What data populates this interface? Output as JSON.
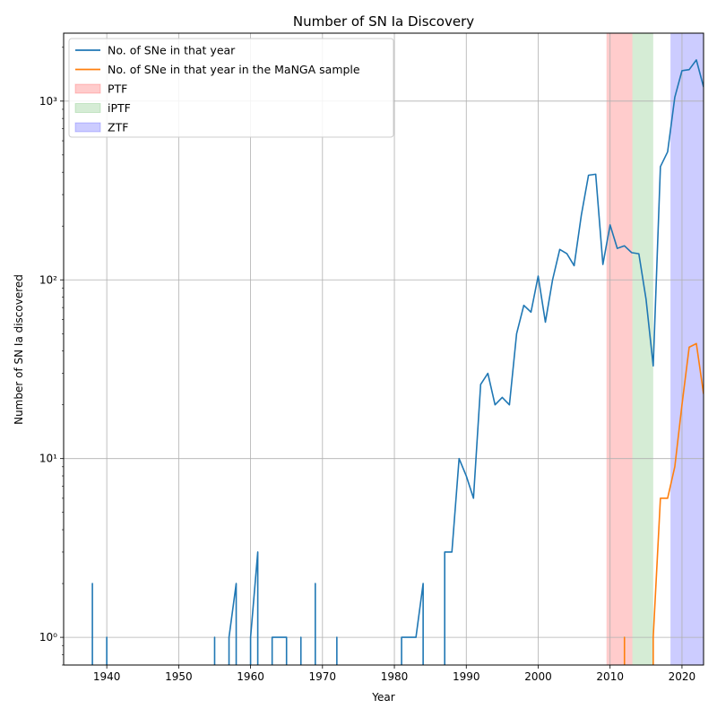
{
  "chart_data": {
    "type": "line",
    "title": "Number of SN Ia Discovery",
    "xlabel": "Year",
    "ylabel": "Number of SN Ia discovered",
    "xlim": [
      1934,
      2023
    ],
    "ylim": [
      0.7,
      2400
    ],
    "yscale": "log",
    "grid": true,
    "legend_position": "top-left",
    "x_ticks": [
      1940,
      1950,
      1960,
      1970,
      1980,
      1990,
      2000,
      2010,
      2020
    ],
    "y_ticks": [
      1,
      10,
      100,
      1000
    ],
    "y_tick_labels": [
      "10⁰",
      "10¹",
      "10²",
      "10³"
    ],
    "series": [
      {
        "name": "No. of SNe in that year",
        "color": "#1f77b4",
        "segments": [
          [
            [
              1938,
              0.5
            ],
            [
              1938,
              2
            ],
            [
              1938,
              0.5
            ]
          ],
          [
            [
              1940,
              0.5
            ],
            [
              1940,
              1
            ],
            [
              1940,
              0.5
            ]
          ],
          [
            [
              1955,
              0.5
            ],
            [
              1955,
              1
            ],
            [
              1955,
              0.5
            ]
          ],
          [
            [
              1957,
              0.5
            ],
            [
              1957,
              1
            ],
            [
              1958,
              2
            ],
            [
              1958,
              0.5
            ]
          ],
          [
            [
              1960,
              0.5
            ],
            [
              1960,
              1
            ],
            [
              1961,
              3
            ],
            [
              1961,
              0.5
            ]
          ],
          [
            [
              1963,
              0.5
            ],
            [
              1963,
              1
            ],
            [
              1964,
              1
            ],
            [
              1965,
              1
            ],
            [
              1965,
              0.5
            ]
          ],
          [
            [
              1967,
              0.5
            ],
            [
              1967,
              1
            ],
            [
              1967,
              0.5
            ]
          ],
          [
            [
              1969,
              0.5
            ],
            [
              1969,
              2
            ],
            [
              1969,
              0.5
            ]
          ],
          [
            [
              1972,
              0.5
            ],
            [
              1972,
              1
            ],
            [
              1972,
              0.5
            ]
          ],
          [
            [
              1981,
              0.5
            ],
            [
              1981,
              1
            ],
            [
              1982,
              1
            ],
            [
              1983,
              1
            ],
            [
              1984,
              2
            ],
            [
              1984,
              0.5
            ]
          ],
          [
            [
              1987,
              0.5
            ],
            [
              1987,
              3
            ],
            [
              1988,
              3
            ],
            [
              1989,
              10
            ],
            [
              1990,
              8
            ],
            [
              1991,
              6
            ],
            [
              1992,
              26
            ],
            [
              1993,
              30
            ],
            [
              1994,
              20
            ],
            [
              1995,
              22
            ],
            [
              1996,
              20
            ],
            [
              1997,
              50
            ],
            [
              1998,
              72
            ],
            [
              1999,
              66
            ],
            [
              2000,
              105
            ],
            [
              2001,
              58
            ],
            [
              2002,
              100
            ],
            [
              2003,
              148
            ],
            [
              2004,
              140
            ],
            [
              2005,
              120
            ],
            [
              2006,
              230
            ],
            [
              2007,
              385
            ],
            [
              2008,
              390
            ],
            [
              2009,
              122
            ],
            [
              2010,
              203
            ],
            [
              2011,
              150
            ],
            [
              2012,
              155
            ],
            [
              2013,
              142
            ],
            [
              2014,
              140
            ],
            [
              2015,
              78
            ],
            [
              2016,
              33
            ],
            [
              2017,
              430
            ],
            [
              2018,
              520
            ],
            [
              2019,
              1050
            ],
            [
              2020,
              1480
            ],
            [
              2021,
              1500
            ],
            [
              2022,
              1700
            ],
            [
              2023,
              1200
            ]
          ]
        ]
      },
      {
        "name": "No. of SNe in that year in the MaNGA sample",
        "color": "#ff7f0e",
        "segments": [
          [
            [
              2012,
              0.5
            ],
            [
              2012,
              1
            ],
            [
              2012,
              0.5
            ]
          ],
          [
            [
              2016,
              0.5
            ],
            [
              2016,
              1
            ],
            [
              2017,
              6
            ],
            [
              2018,
              6
            ],
            [
              2019,
              9
            ],
            [
              2020,
              20
            ],
            [
              2021,
              42
            ],
            [
              2022,
              44
            ],
            [
              2023,
              23
            ]
          ]
        ]
      }
    ],
    "spans": [
      {
        "name": "PTF",
        "x0": 2009.5,
        "x1": 2013.1,
        "color": "#ff0000"
      },
      {
        "name": "iPTF",
        "x0": 2013.1,
        "x1": 2016.0,
        "color": "#2ca02c"
      },
      {
        "name": "ZTF",
        "x0": 2018.4,
        "x1": 2023.0,
        "color": "#0000ff"
      }
    ]
  }
}
